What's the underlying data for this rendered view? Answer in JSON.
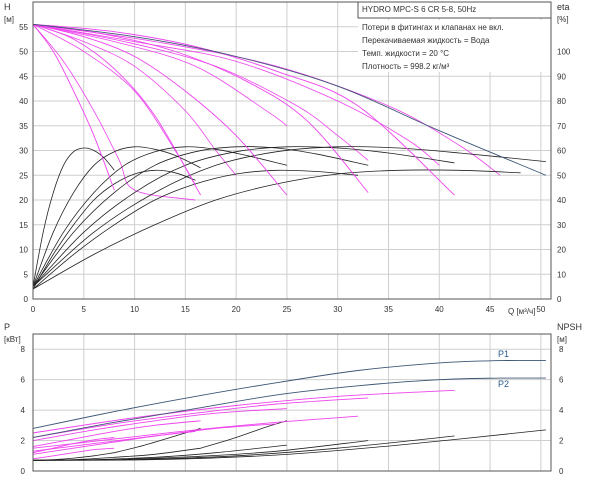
{
  "chart_data": [
    {
      "type": "line",
      "name": "head-efficiency",
      "title": "HYDRO MPC-S 6 CR 5-8, 50Hz",
      "notes": [
        "Потери в фитингах и клапанах не вкл.",
        "Перекачиваемая жидкость = Вода",
        "Темп. жидкости = 20 °C",
        "Плотность = 998.2 кг/м³"
      ],
      "xlabel": "Q [м³/ч]",
      "ylabel_left": "H",
      "ylabel_left_unit": "[м]",
      "ylabel_right": "eta",
      "ylabel_right_unit": "[%]",
      "xlim": [
        0,
        51
      ],
      "ylim_left": [
        0,
        60
      ],
      "ylim_right": [
        0,
        120
      ],
      "x_ticks": [
        0,
        5,
        10,
        15,
        20,
        25,
        30,
        35,
        40,
        45,
        50
      ],
      "y_ticks_left": [
        0,
        5,
        10,
        15,
        20,
        25,
        30,
        35,
        40,
        45,
        50,
        55
      ],
      "y_ticks_right": [
        0,
        10,
        20,
        30,
        40,
        50,
        60,
        70,
        80,
        90,
        100
      ],
      "grid": true,
      "head_curves_max_speed": [
        {
          "pumps": 1,
          "x": [
            0,
            2,
            4,
            6,
            8
          ],
          "y": [
            55.5,
            50,
            42,
            33,
            22
          ]
        },
        {
          "pumps": 2,
          "x": [
            0,
            4,
            8,
            12,
            16.5
          ],
          "y": [
            55.5,
            52.5,
            46.5,
            37,
            21
          ]
        },
        {
          "pumps": 3,
          "x": [
            0,
            5,
            10,
            15,
            20,
            25
          ],
          "y": [
            55.5,
            53,
            49,
            42,
            33,
            21
          ]
        },
        {
          "pumps": 4,
          "x": [
            0,
            7,
            14,
            21,
            27,
            33
          ],
          "y": [
            55.5,
            53.5,
            50,
            44,
            36,
            21.5
          ]
        },
        {
          "pumps": 5,
          "x": [
            0,
            8,
            16,
            24,
            32,
            41.5
          ],
          "y": [
            55.5,
            54,
            51,
            46,
            39,
            21
          ]
        },
        {
          "pumps": 6,
          "x": [
            0,
            10,
            20,
            30,
            40,
            50.5
          ],
          "y": [
            55.5,
            53,
            49,
            43,
            34,
            25
          ]
        }
      ],
      "head_curves_reduced_speed": [
        {
          "x": [
            0,
            3,
            6,
            8.5,
            10,
            16
          ],
          "y": [
            55.5,
            48,
            38,
            28,
            22,
            20
          ]
        },
        {
          "x": [
            0,
            5,
            10,
            14,
            16
          ],
          "y": [
            55.5,
            50,
            42,
            30,
            23
          ]
        },
        {
          "x": [
            0,
            5,
            10,
            15,
            18,
            20
          ],
          "y": [
            55.5,
            52,
            47,
            38,
            30,
            25
          ]
        },
        {
          "x": [
            0,
            8,
            16,
            23,
            25
          ],
          "y": [
            55.5,
            52,
            47,
            38,
            35
          ]
        },
        {
          "x": [
            0,
            9,
            18,
            26,
            30,
            33
          ],
          "y": [
            55.5,
            52,
            47,
            39,
            33,
            28
          ]
        },
        {
          "x": [
            0,
            10,
            20,
            30,
            37,
            40
          ],
          "y": [
            55.5,
            52,
            48,
            40,
            32,
            27
          ]
        },
        {
          "x": [
            0,
            12,
            24,
            35,
            42,
            46
          ],
          "y": [
            55.5,
            52,
            47,
            39,
            31,
            25
          ]
        }
      ],
      "efficiency_curves": [
        {
          "x": [
            0,
            1,
            2,
            3,
            4,
            5,
            6,
            7,
            8
          ],
          "eta": [
            5,
            27,
            43,
            54,
            59.5,
            61,
            60,
            57,
            52
          ]
        },
        {
          "x": [
            0,
            2,
            4,
            6,
            8,
            10,
            12,
            14,
            16.5
          ],
          "eta": [
            5,
            27,
            43,
            54,
            59.5,
            61.5,
            60.5,
            58,
            53
          ]
        },
        {
          "x": [
            0,
            3,
            6,
            9,
            12,
            15,
            18,
            21,
            25
          ],
          "eta": [
            5,
            27,
            43,
            54,
            59.5,
            61.5,
            60.5,
            58,
            54
          ]
        },
        {
          "x": [
            0,
            4,
            8,
            12,
            16,
            20,
            24,
            28,
            33
          ],
          "eta": [
            5,
            27,
            43,
            54,
            59.5,
            61.5,
            61,
            58.5,
            54
          ]
        },
        {
          "x": [
            0,
            5,
            10,
            15,
            20,
            25,
            30,
            35,
            41.5
          ],
          "eta": [
            5,
            27,
            43,
            54,
            59.5,
            61.5,
            61,
            59,
            55
          ]
        },
        {
          "x": [
            0,
            6,
            12,
            18,
            24,
            30,
            36,
            42,
            50.5
          ],
          "eta": [
            5,
            27,
            43,
            54,
            59.5,
            61.5,
            61,
            59,
            55.5
          ]
        },
        {
          "x": [
            0,
            2,
            4,
            6,
            8,
            10,
            12,
            14,
            16
          ],
          "eta": [
            4,
            18,
            30,
            40,
            46.5,
            50.5,
            52,
            51,
            48
          ]
        },
        {
          "x": [
            0,
            4,
            8,
            12,
            16,
            20,
            24,
            28,
            32
          ],
          "eta": [
            4,
            18,
            30,
            40,
            46.5,
            50.5,
            52,
            51.5,
            50
          ]
        },
        {
          "x": [
            0,
            6,
            12,
            18,
            24,
            30,
            36,
            42,
            48
          ],
          "eta": [
            4,
            18,
            30,
            40,
            46.5,
            50.5,
            52,
            52,
            51
          ]
        }
      ]
    },
    {
      "type": "line",
      "name": "power-npsh",
      "xlim": [
        0,
        51
      ],
      "ylabel_left": "P",
      "ylabel_left_unit": "[кВт]",
      "ylabel_right": "NPSH",
      "ylabel_right_unit": "[м]",
      "ylim_left": [
        0,
        9
      ],
      "ylim_right": [
        0,
        9
      ],
      "y_ticks_left": [
        0,
        2,
        4,
        6,
        8
      ],
      "y_ticks_right": [
        0,
        2,
        4,
        6,
        8
      ],
      "grid": true,
      "series_labels": [
        {
          "text": "P1",
          "x": 51,
          "y": 7.5
        },
        {
          "text": "P2",
          "x": 51,
          "y": 5.7
        }
      ],
      "p1_curve": {
        "x": [
          0,
          8,
          16,
          24,
          32,
          40,
          46,
          50.5
        ],
        "y": [
          2.8,
          3.9,
          4.9,
          5.8,
          6.6,
          7.1,
          7.25,
          7.25
        ]
      },
      "p2_curve": {
        "x": [
          0,
          8,
          16,
          24,
          32,
          40,
          46,
          50.5
        ],
        "y": [
          2.2,
          3.2,
          4.1,
          5.0,
          5.6,
          6.0,
          6.1,
          6.1
        ]
      },
      "power_curves": [
        {
          "x": [
            0,
            2,
            4,
            6,
            8
          ],
          "y": [
            1.2,
            1.5,
            1.8,
            2.05,
            2.2
          ]
        },
        {
          "x": [
            0,
            4,
            8,
            12,
            16.5
          ],
          "y": [
            1.6,
            2.1,
            2.6,
            3.0,
            3.3
          ]
        },
        {
          "x": [
            0,
            6,
            12,
            18,
            25
          ],
          "y": [
            2.0,
            2.7,
            3.3,
            3.8,
            4.1
          ]
        },
        {
          "x": [
            0,
            8,
            16,
            24,
            33
          ],
          "y": [
            2.2,
            3.1,
            3.8,
            4.4,
            4.8
          ]
        },
        {
          "x": [
            0,
            10,
            20,
            30,
            41.5
          ],
          "y": [
            2.5,
            3.5,
            4.3,
            4.9,
            5.3
          ]
        },
        {
          "x": [
            0,
            2,
            4,
            6,
            8
          ],
          "y": [
            0.8,
            1.0,
            1.2,
            1.4,
            1.5
          ]
        },
        {
          "x": [
            0,
            4,
            8,
            12,
            16
          ],
          "y": [
            1.1,
            1.5,
            1.9,
            2.3,
            2.6
          ]
        },
        {
          "x": [
            0,
            6,
            12,
            18,
            24
          ],
          "y": [
            1.3,
            1.8,
            2.3,
            2.8,
            3.1
          ]
        },
        {
          "x": [
            0,
            8,
            16,
            24,
            32
          ],
          "y": [
            1.5,
            2.1,
            2.7,
            3.2,
            3.6
          ]
        }
      ],
      "npsh_curves": [
        {
          "x": [
            0,
            2,
            4,
            6,
            8
          ],
          "y": [
            0.7,
            0.75,
            0.85,
            1.0,
            1.2
          ]
        },
        {
          "x": [
            0,
            4,
            8,
            12,
            16.5
          ],
          "y": [
            0.7,
            0.75,
            0.9,
            1.1,
            1.5
          ]
        },
        {
          "x": [
            0,
            6,
            12,
            18,
            25
          ],
          "y": [
            0.7,
            0.75,
            0.9,
            1.2,
            1.7
          ]
        },
        {
          "x": [
            0,
            8,
            16,
            24,
            33
          ],
          "y": [
            0.7,
            0.75,
            0.95,
            1.3,
            2.0
          ]
        },
        {
          "x": [
            0,
            10,
            20,
            30,
            41.5
          ],
          "y": [
            0.7,
            0.75,
            1.0,
            1.5,
            2.3
          ]
        },
        {
          "x": [
            0,
            12,
            24,
            36,
            50.5
          ],
          "y": [
            0.7,
            0.75,
            1.05,
            1.7,
            2.7
          ]
        },
        {
          "x": [
            8,
            11,
            14,
            16.5
          ],
          "y": [
            1.2,
            1.7,
            2.3,
            2.8
          ]
        },
        {
          "x": [
            16.5,
            20,
            23,
            25
          ],
          "y": [
            1.5,
            2.2,
            2.9,
            3.3
          ]
        }
      ]
    }
  ],
  "colors": {
    "head_max": "#3d5575",
    "head_reduced": "#ee44ee",
    "efficiency": "#222222",
    "p1": "#3d5575",
    "p2": "#3d5575",
    "power": "#ee44ee",
    "npsh": "#222222",
    "grid": "#cfcfcf",
    "axis": "#555555",
    "text": "#333333",
    "label_blue": "#2a5d8f"
  }
}
